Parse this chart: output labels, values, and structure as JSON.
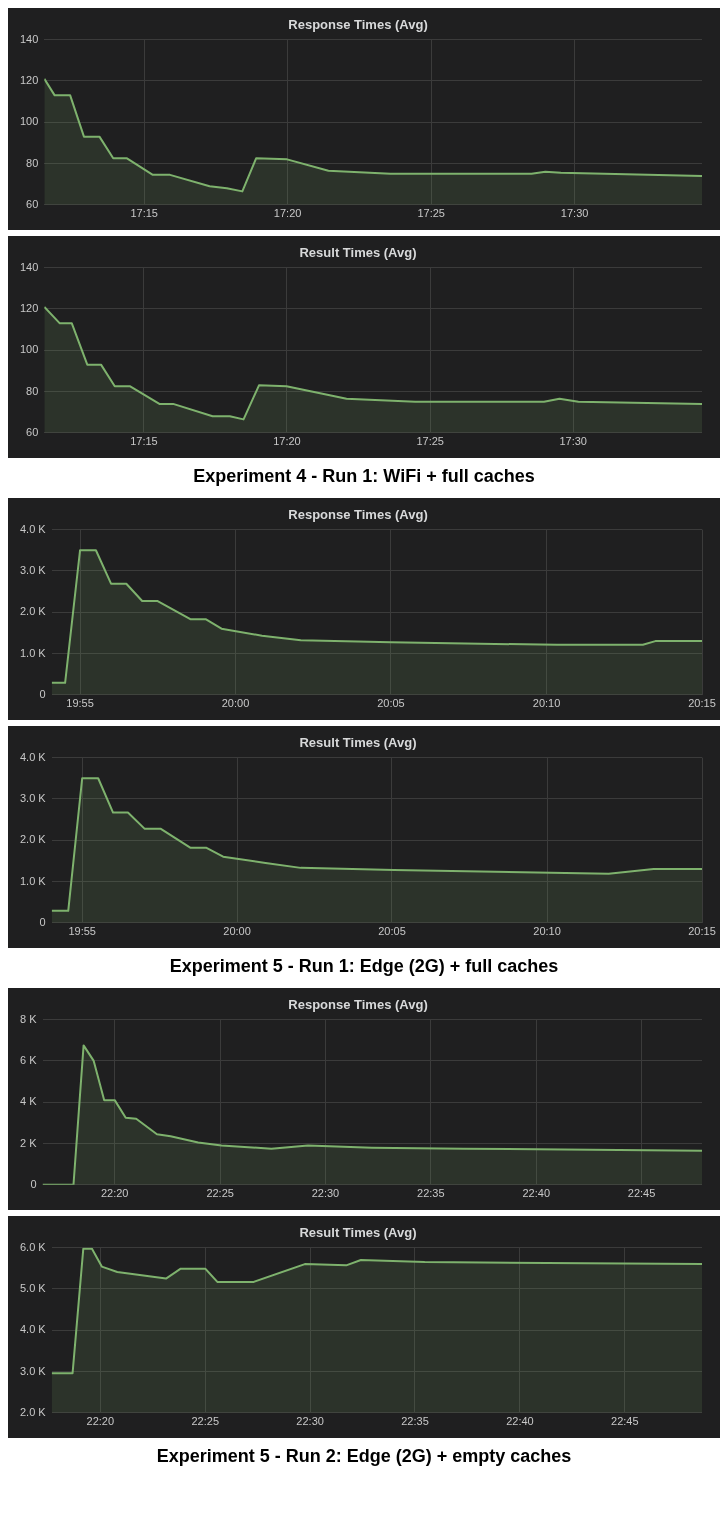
{
  "chart_data": [
    {
      "type": "area",
      "title": "Response Times (Avg)",
      "annotations": [
        "Experiment 4 - Run 1: WiFi + full caches"
      ],
      "grid": true,
      "xlim": [
        17.192,
        17.574
      ],
      "xticks": [
        {
          "value": 17.25,
          "label": "17:15"
        },
        {
          "value": 17.3333,
          "label": "17:20"
        },
        {
          "value": 17.4167,
          "label": "17:25"
        },
        {
          "value": 17.5,
          "label": "17:30"
        }
      ],
      "ylim": [
        60,
        140
      ],
      "yticks": [
        60,
        80,
        100,
        120,
        140
      ],
      "series": [
        {
          "color": "#7eb26d",
          "x": [
            17.192,
            17.198,
            17.207,
            17.215,
            17.224,
            17.232,
            17.24,
            17.255,
            17.265,
            17.288,
            17.298,
            17.307,
            17.315,
            17.333,
            17.357,
            17.393,
            17.475,
            17.483,
            17.492,
            17.574
          ],
          "values": [
            121,
            113,
            113,
            93,
            93,
            82.5,
            82.5,
            74.5,
            74.5,
            69,
            68,
            66.5,
            82.5,
            82,
            76.5,
            75,
            75,
            76,
            75.5,
            74
          ]
        }
      ]
    },
    {
      "type": "area",
      "title": "Result Times (Avg)",
      "grid": true,
      "xlim": [
        17.192,
        17.575
      ],
      "xticks": [
        {
          "value": 17.25,
          "label": "17:15"
        },
        {
          "value": 17.3333,
          "label": "17:20"
        },
        {
          "value": 17.4167,
          "label": "17:25"
        },
        {
          "value": 17.5,
          "label": "17:30"
        }
      ],
      "ylim": [
        60,
        140
      ],
      "yticks": [
        60,
        80,
        100,
        120,
        140
      ],
      "series": [
        {
          "color": "#7eb26d",
          "x": [
            17.192,
            17.201,
            17.208,
            17.217,
            17.225,
            17.233,
            17.242,
            17.259,
            17.267,
            17.29,
            17.3,
            17.308,
            17.317,
            17.333,
            17.368,
            17.408,
            17.483,
            17.492,
            17.503,
            17.575
          ],
          "values": [
            121,
            113,
            113,
            93,
            93,
            82.5,
            82.5,
            74,
            74,
            68,
            68,
            66.5,
            83,
            82.5,
            76.5,
            75,
            75,
            76.5,
            75,
            74
          ]
        }
      ]
    },
    {
      "type": "area",
      "title": "Response Times (Avg)",
      "annotations": [
        "Experiment 5 - Run 1: Edge (2G) + full caches"
      ],
      "grid": true,
      "xlim": [
        19.9015,
        20.25
      ],
      "xticks": [
        {
          "value": 19.9167,
          "label": "19:55"
        },
        {
          "value": 20,
          "label": "20:00"
        },
        {
          "value": 20.0833,
          "label": "20:05"
        },
        {
          "value": 20.1667,
          "label": "20:10"
        },
        {
          "value": 20.25,
          "label": "20:15"
        }
      ],
      "ylim": [
        0,
        4000
      ],
      "yticks": [
        0,
        {
          "value": 1000,
          "label": "1.0 K"
        },
        {
          "value": 2000,
          "label": "2.0 K"
        },
        {
          "value": 3000,
          "label": "3.0 K"
        },
        {
          "value": 4000,
          "label": "4.0 K"
        }
      ],
      "series": [
        {
          "color": "#7eb26d",
          "x": [
            19.9015,
            19.9087,
            19.9167,
            19.9252,
            19.9333,
            19.9415,
            19.95,
            19.9583,
            19.9758,
            19.984,
            19.9925,
            20.0142,
            20.035,
            20.0833,
            20.1723,
            20.2183,
            20.225,
            20.25
          ],
          "values": [
            290,
            290,
            3500,
            3500,
            2690,
            2690,
            2270,
            2270,
            1830,
            1830,
            1600,
            1430,
            1320,
            1270,
            1210,
            1210,
            1300,
            1300
          ]
        }
      ]
    },
    {
      "type": "area",
      "title": "Result Times (Avg)",
      "grid": true,
      "xlim": [
        19.9003,
        20.25
      ],
      "xticks": [
        {
          "value": 19.9167,
          "label": "19:55"
        },
        {
          "value": 20,
          "label": "20:00"
        },
        {
          "value": 20.0833,
          "label": "20:05"
        },
        {
          "value": 20.1667,
          "label": "20:10"
        },
        {
          "value": 20.25,
          "label": "20:15"
        }
      ],
      "ylim": [
        0,
        4000
      ],
      "yticks": [
        0,
        {
          "value": 1000,
          "label": "1.0 K"
        },
        {
          "value": 2000,
          "label": "2.0 K"
        },
        {
          "value": 3000,
          "label": "3.0 K"
        },
        {
          "value": 4000,
          "label": "4.0 K"
        }
      ],
      "series": [
        {
          "color": "#7eb26d",
          "x": [
            19.9003,
            19.9092,
            19.9167,
            19.9253,
            19.9333,
            19.9413,
            19.9502,
            19.9588,
            19.9748,
            19.9833,
            19.9925,
            20.0153,
            20.0342,
            20.0843,
            20.1998,
            20.224,
            20.25
          ],
          "values": [
            290,
            290,
            3500,
            3500,
            2670,
            2670,
            2280,
            2280,
            1820,
            1820,
            1600,
            1450,
            1330,
            1280,
            1190,
            1300,
            1300
          ]
        }
      ]
    },
    {
      "type": "area",
      "title": "Response Times (Avg)",
      "annotations": [
        "Experiment 5 - Run 2: Edge (2G) + empty caches"
      ],
      "grid": true,
      "xlim": [
        22.2762,
        22.7978
      ],
      "xticks": [
        {
          "value": 22.3333,
          "label": "22:20"
        },
        {
          "value": 22.4167,
          "label": "22:25"
        },
        {
          "value": 22.5,
          "label": "22:30"
        },
        {
          "value": 22.5833,
          "label": "22:35"
        },
        {
          "value": 22.6667,
          "label": "22:40"
        },
        {
          "value": 22.75,
          "label": "22:45"
        }
      ],
      "ylim": [
        0,
        8000
      ],
      "yticks": [
        0,
        {
          "value": 2000,
          "label": "2 K"
        },
        {
          "value": 4000,
          "label": "4 K"
        },
        {
          "value": 6000,
          "label": "6 K"
        },
        {
          "value": 8000,
          "label": "8 K"
        }
      ],
      "series": [
        {
          "color": "#7eb26d",
          "x": [
            22.2762,
            22.3007,
            22.3087,
            22.3167,
            22.325,
            22.3333,
            22.342,
            22.3503,
            22.3667,
            22.3775,
            22.3993,
            22.4178,
            22.4572,
            22.4862,
            22.5367,
            22.6095,
            22.7978
          ],
          "values": [
            0,
            0,
            6750,
            6000,
            4100,
            4100,
            3250,
            3200,
            2450,
            2350,
            2050,
            1900,
            1750,
            1900,
            1800,
            1750,
            1650
          ]
        }
      ]
    },
    {
      "type": "area",
      "title": "Result Times (Avg)",
      "grid": true,
      "xlim": [
        22.2947,
        22.8113
      ],
      "xticks": [
        {
          "value": 22.3333,
          "label": "22:20"
        },
        {
          "value": 22.4167,
          "label": "22:25"
        },
        {
          "value": 22.5,
          "label": "22:30"
        },
        {
          "value": 22.5833,
          "label": "22:35"
        },
        {
          "value": 22.6667,
          "label": "22:40"
        },
        {
          "value": 22.75,
          "label": "22:45"
        }
      ],
      "ylim": [
        2000,
        6000
      ],
      "yticks": [
        {
          "value": 2000,
          "label": "2.0 K"
        },
        {
          "value": 3000,
          "label": "3.0 K"
        },
        {
          "value": 4000,
          "label": "4.0 K"
        },
        {
          "value": 5000,
          "label": "5.0 K"
        },
        {
          "value": 6000,
          "label": "6.0 K"
        }
      ],
      "series": [
        {
          "color": "#7eb26d",
          "x": [
            22.2947,
            22.3113,
            22.3198,
            22.3267,
            22.3345,
            22.3468,
            22.3855,
            22.3972,
            22.4167,
            22.4263,
            22.4552,
            22.4958,
            22.5287,
            22.5403,
            22.591,
            22.8113
          ],
          "values": [
            2960,
            2960,
            5970,
            5970,
            5540,
            5410,
            5250,
            5490,
            5490,
            5170,
            5170,
            5600,
            5570,
            5700,
            5650,
            5600
          ]
        }
      ]
    }
  ]
}
